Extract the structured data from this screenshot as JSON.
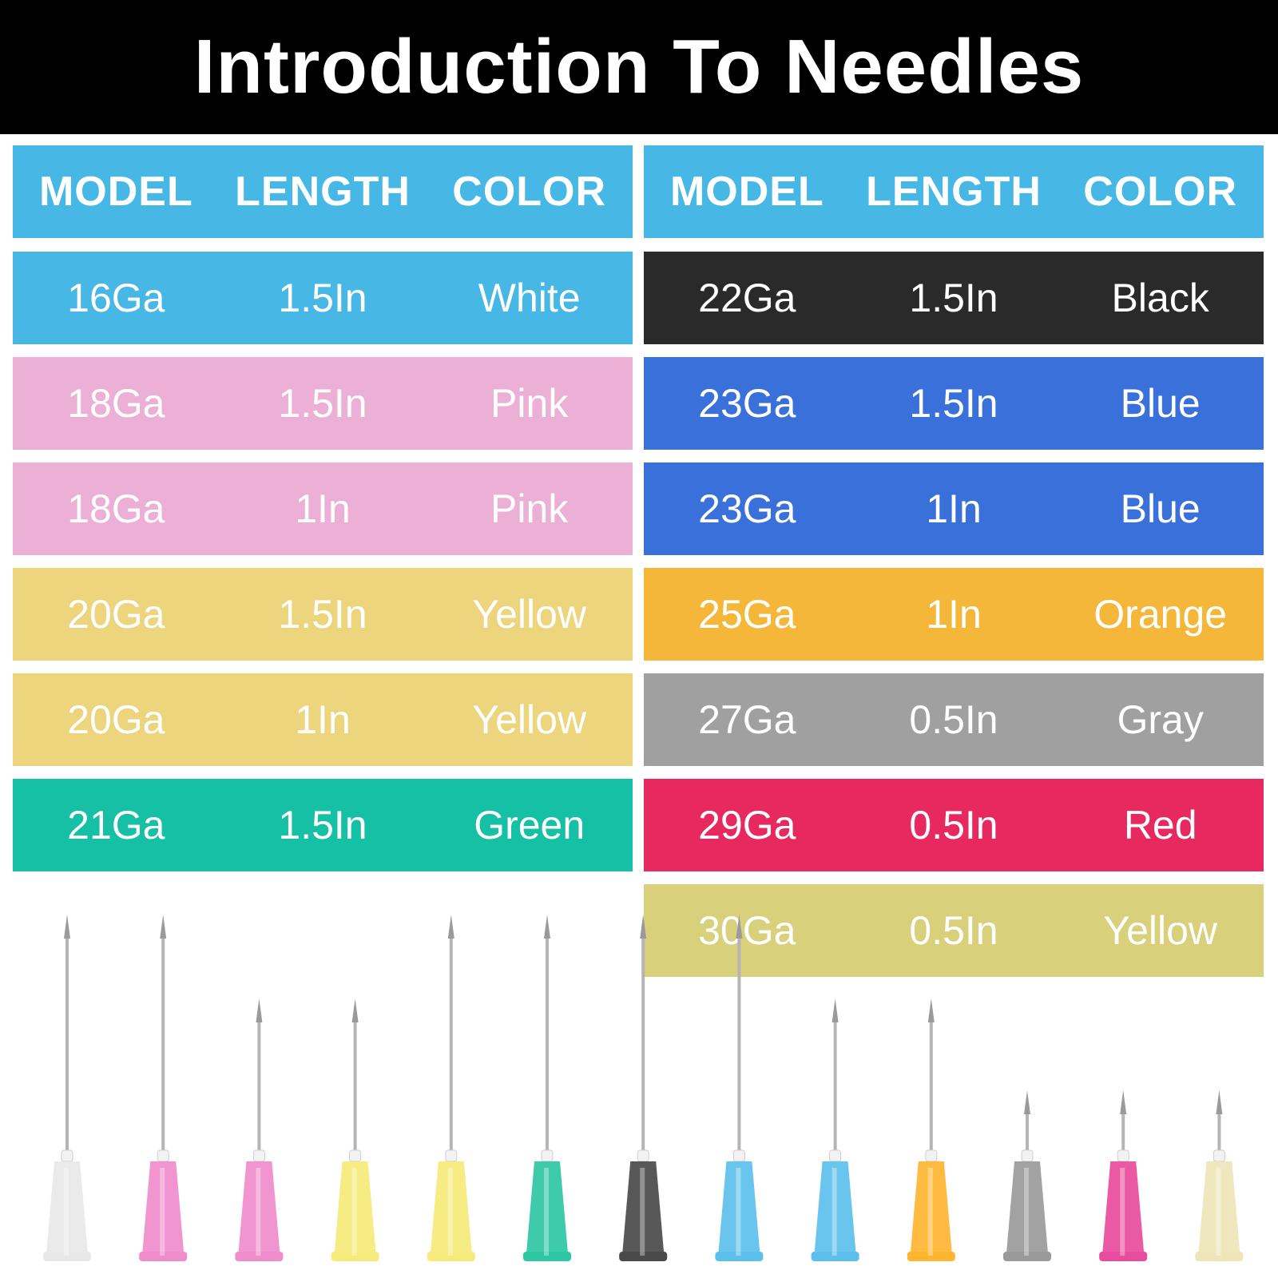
{
  "title": "Introduction To Needles",
  "headers": [
    "MODEL",
    "LENGTH",
    "COLOR"
  ],
  "header_color": "#47b8e6",
  "left_table": [
    {
      "model": "16Ga",
      "length": "1.5In",
      "color": "White",
      "bg": "#47b8e6"
    },
    {
      "model": "18Ga",
      "length": "1.5In",
      "color": "Pink",
      "bg": "#ecb0d6"
    },
    {
      "model": "18Ga",
      "length": "1In",
      "color": "Pink",
      "bg": "#ecb0d6"
    },
    {
      "model": "20Ga",
      "length": "1.5In",
      "color": "Yellow",
      "bg": "#ecd57c"
    },
    {
      "model": "20Ga",
      "length": "1In",
      "color": "Yellow",
      "bg": "#ecd57c"
    },
    {
      "model": "21Ga",
      "length": "1.5In",
      "color": "Green",
      "bg": "#15c0a4"
    }
  ],
  "right_table": [
    {
      "model": "22Ga",
      "length": "1.5In",
      "color": "Black",
      "bg": "#2a2a2a"
    },
    {
      "model": "23Ga",
      "length": "1.5In",
      "color": "Blue",
      "bg": "#3970da"
    },
    {
      "model": "23Ga",
      "length": "1In",
      "color": "Blue",
      "bg": "#3970da"
    },
    {
      "model": "25Ga",
      "length": "1In",
      "color": "Orange",
      "bg": "#f5b73a"
    },
    {
      "model": "27Ga",
      "length": "0.5In",
      "color": "Gray",
      "bg": "#a0a0a0"
    },
    {
      "model": "29Ga",
      "length": "0.5In",
      "color": "Red",
      "bg": "#e8295f"
    },
    {
      "model": "30Ga",
      "length": "0.5In",
      "color": "Yellow",
      "bg": "#d8d07a"
    }
  ],
  "needles": [
    {
      "length": "1.5In",
      "hub": "#e8e8e8"
    },
    {
      "length": "1.5In",
      "hub": "#f08ccc"
    },
    {
      "length": "1In",
      "hub": "#f08ccc"
    },
    {
      "length": "1In",
      "hub": "#f6ea7a"
    },
    {
      "length": "1.5In",
      "hub": "#f6ea7a"
    },
    {
      "length": "1.5In",
      "hub": "#2ec7a4"
    },
    {
      "length": "1.5In",
      "hub": "#4a4a4a"
    },
    {
      "length": "1.5In",
      "hub": "#5cc0ec"
    },
    {
      "length": "1In",
      "hub": "#5cc0ec"
    },
    {
      "length": "1In",
      "hub": "#ffb531"
    },
    {
      "length": "0.5In",
      "hub": "#9a9a9a"
    },
    {
      "length": "0.5In",
      "hub": "#e84c9c"
    },
    {
      "length": "0.5In",
      "hub": "#eee6b8"
    }
  ]
}
